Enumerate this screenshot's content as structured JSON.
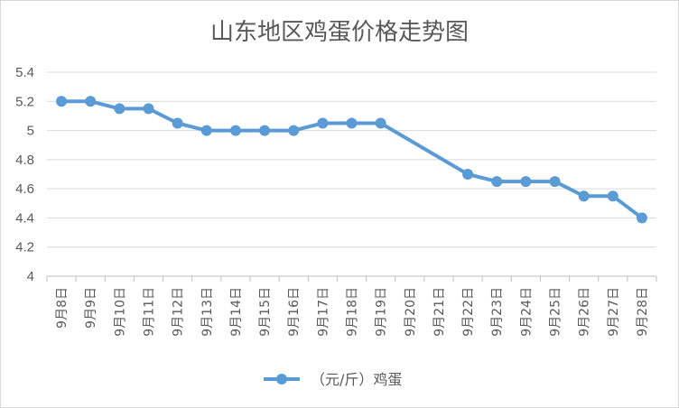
{
  "chart_data": {
    "type": "line",
    "title": "山东地区鸡蛋价格走势图",
    "categories": [
      "9月8日",
      "9月9日",
      "9月10日",
      "9月11日",
      "9月12日",
      "9月13日",
      "9月14日",
      "9月15日",
      "9月16日",
      "9月17日",
      "9月18日",
      "9月19日",
      "9月20日",
      "9月21日",
      "9月22日",
      "9月23日",
      "9月24日",
      "9月25日",
      "9月26日",
      "9月27日",
      "9月28日"
    ],
    "series": [
      {
        "name": "（元/斤）鸡蛋",
        "values": [
          5.2,
          5.2,
          5.15,
          5.15,
          5.05,
          5.0,
          5.0,
          5.0,
          5.0,
          5.05,
          5.05,
          5.05,
          null,
          null,
          4.7,
          4.65,
          4.65,
          4.65,
          4.55,
          4.55,
          4.4
        ],
        "color": "#5b9bd5"
      }
    ],
    "ylim": [
      4,
      5.4
    ],
    "yticks": [
      "4",
      "4.2",
      "4.4",
      "4.6",
      "4.8",
      "5",
      "5.2",
      "5.4"
    ],
    "grid": true,
    "legend_position": "bottom",
    "xlabel": "",
    "ylabel": ""
  }
}
